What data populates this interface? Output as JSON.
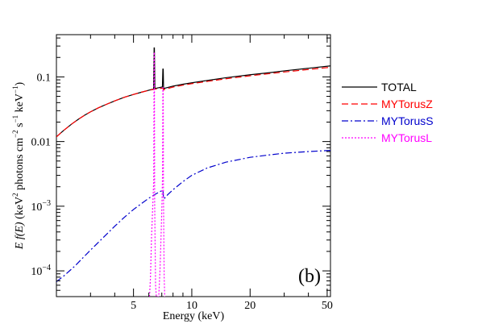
{
  "chart_data": {
    "type": "line",
    "xlabel": "Energy (keV)",
    "ylabel_parts": [
      "E",
      " ",
      "f(E)",
      " (keV",
      "2",
      " photons cm",
      "−2",
      " s",
      "−1",
      " keV",
      "−1",
      ")"
    ],
    "xscale": "log",
    "yscale": "log",
    "xlim": [
      2.0,
      52.0
    ],
    "ylim": [
      4e-05,
      0.45
    ],
    "x_ticks": [
      {
        "value": 5,
        "label": "5"
      },
      {
        "value": 10,
        "label": "10"
      },
      {
        "value": 20,
        "label": "20"
      },
      {
        "value": 50,
        "label": "50"
      }
    ],
    "y_ticks": [
      {
        "value": 0.1,
        "label": "0.1"
      },
      {
        "value": 0.01,
        "label": "0.01"
      },
      {
        "value": 0.001,
        "label_base": "10",
        "label_exp": "−3"
      },
      {
        "value": 0.0001,
        "label_base": "10",
        "label_exp": "−4"
      }
    ],
    "annotation": "(b)",
    "legend_position": "right",
    "series": [
      {
        "name": "TOTAL",
        "color": "#000000",
        "dash": "solid",
        "points": [
          [
            2.0,
            0.0118
          ],
          [
            2.1,
            0.0135
          ],
          [
            2.2,
            0.0152
          ],
          [
            2.4,
            0.0187
          ],
          [
            2.6,
            0.0222
          ],
          [
            2.8,
            0.0256
          ],
          [
            3.0,
            0.0288
          ],
          [
            3.3,
            0.0333
          ],
          [
            3.6,
            0.0373
          ],
          [
            4.0,
            0.0425
          ],
          [
            4.5,
            0.0485
          ],
          [
            5.0,
            0.0535
          ],
          [
            5.5,
            0.058
          ],
          [
            6.0,
            0.0622
          ],
          [
            6.35,
            0.065
          ],
          [
            6.39,
            0.28
          ],
          [
            6.41,
            0.28
          ],
          [
            6.45,
            0.066
          ],
          [
            6.9,
            0.069
          ],
          [
            7.05,
            0.07
          ],
          [
            7.09,
            0.132
          ],
          [
            7.12,
            0.132
          ],
          [
            7.15,
            0.066
          ],
          [
            7.5,
            0.0685
          ],
          [
            8.0,
            0.072
          ],
          [
            9.0,
            0.077
          ],
          [
            10.0,
            0.081
          ],
          [
            12.0,
            0.088
          ],
          [
            15.0,
            0.097
          ],
          [
            20.0,
            0.108
          ],
          [
            25.0,
            0.116
          ],
          [
            30.0,
            0.124
          ],
          [
            40.0,
            0.136
          ],
          [
            52.0,
            0.148
          ]
        ]
      },
      {
        "name": "MYTorusZ",
        "color": "#ff0000",
        "dash": "8,4",
        "points": [
          [
            2.0,
            0.0118
          ],
          [
            2.1,
            0.0135
          ],
          [
            2.2,
            0.0152
          ],
          [
            2.4,
            0.0187
          ],
          [
            2.6,
            0.0222
          ],
          [
            2.8,
            0.0256
          ],
          [
            3.0,
            0.0288
          ],
          [
            3.3,
            0.0333
          ],
          [
            3.6,
            0.0373
          ],
          [
            4.0,
            0.0425
          ],
          [
            4.5,
            0.0485
          ],
          [
            5.0,
            0.0535
          ],
          [
            5.5,
            0.058
          ],
          [
            6.0,
            0.062
          ],
          [
            6.4,
            0.0645
          ],
          [
            6.9,
            0.0665
          ],
          [
            7.1,
            0.0668
          ],
          [
            7.15,
            0.063
          ],
          [
            7.5,
            0.066
          ],
          [
            8.0,
            0.0695
          ],
          [
            9.0,
            0.0745
          ],
          [
            10.0,
            0.0785
          ],
          [
            12.0,
            0.085
          ],
          [
            15.0,
            0.0935
          ],
          [
            20.0,
            0.104
          ],
          [
            25.0,
            0.112
          ],
          [
            30.0,
            0.119
          ],
          [
            40.0,
            0.13
          ],
          [
            52.0,
            0.141
          ]
        ]
      },
      {
        "name": "MYTorusS",
        "color": "#0000cc",
        "dash": "8,3,2,3",
        "points": [
          [
            2.0,
            6.8e-05
          ],
          [
            2.2,
            8.5e-05
          ],
          [
            2.5,
            0.00012
          ],
          [
            2.8,
            0.00017
          ],
          [
            3.0,
            0.00021
          ],
          [
            3.5,
            0.00033
          ],
          [
            4.0,
            0.00049
          ],
          [
            4.5,
            0.00068
          ],
          [
            5.0,
            0.00089
          ],
          [
            5.5,
            0.0011
          ],
          [
            6.0,
            0.00133
          ],
          [
            6.4,
            0.0015
          ],
          [
            6.9,
            0.0017
          ],
          [
            7.1,
            0.00175
          ],
          [
            7.15,
            0.00128
          ],
          [
            7.5,
            0.0015
          ],
          [
            8.0,
            0.0018
          ],
          [
            9.0,
            0.0024
          ],
          [
            10.0,
            0.003
          ],
          [
            12.0,
            0.0039
          ],
          [
            15.0,
            0.0048
          ],
          [
            20.0,
            0.0057
          ],
          [
            25.0,
            0.0062
          ],
          [
            30.0,
            0.0066
          ],
          [
            40.0,
            0.007
          ],
          [
            52.0,
            0.0073
          ]
        ]
      },
      {
        "name": "MYTorusL",
        "color": "#ff00ff",
        "dash": "2,2",
        "points": [
          [
            6.05,
            4e-05
          ],
          [
            6.12,
            8e-05
          ],
          [
            6.2,
            0.00035
          ],
          [
            6.3,
            0.0012
          ],
          [
            6.36,
            0.0025
          ],
          [
            6.39,
            0.24
          ],
          [
            6.41,
            0.24
          ],
          [
            6.43,
            0.0012
          ],
          [
            6.5,
            6e-05
          ],
          [
            6.56,
            4e-05
          ],
          [
            6.75,
            4e-05
          ],
          [
            6.85,
            0.0001
          ],
          [
            6.95,
            0.0004
          ],
          [
            7.02,
            0.0012
          ],
          [
            7.06,
            0.003
          ],
          [
            7.09,
            0.068
          ],
          [
            7.12,
            0.068
          ],
          [
            7.14,
            0.0015
          ],
          [
            7.2,
            8e-05
          ],
          [
            7.25,
            4e-05
          ]
        ]
      }
    ]
  }
}
